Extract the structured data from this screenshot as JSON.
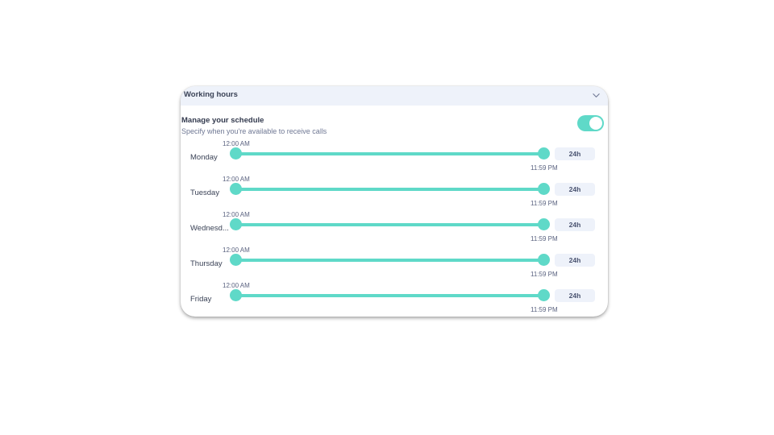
{
  "section": {
    "title": "Working hours",
    "chevron_icon": "chevron-down-icon"
  },
  "schedule": {
    "title": "Manage your schedule",
    "subtitle": "Specify when you're available to receive calls",
    "toggle_on": true
  },
  "colors": {
    "accent": "#5fd9c8",
    "header_bg": "#eef2fa",
    "badge_bg": "#eef2fa"
  },
  "days": [
    {
      "label": "Monday",
      "start": "12:00 AM",
      "end": "11:59 PM",
      "duration": "24h"
    },
    {
      "label": "Tuesday",
      "start": "12:00 AM",
      "end": "11:59 PM",
      "duration": "24h"
    },
    {
      "label": "Wednesd...",
      "start": "12:00 AM",
      "end": "11:59 PM",
      "duration": "24h"
    },
    {
      "label": "Thursday",
      "start": "12:00 AM",
      "end": "11:59 PM",
      "duration": "24h"
    },
    {
      "label": "Friday",
      "start": "12:00 AM",
      "end": "11:59 PM",
      "duration": "24h"
    }
  ]
}
